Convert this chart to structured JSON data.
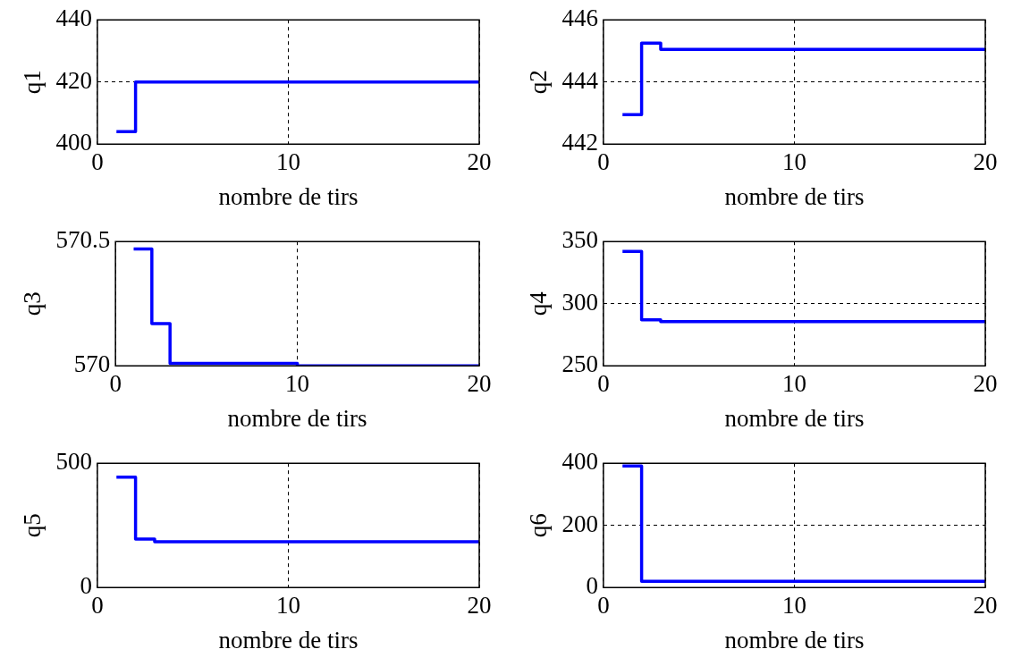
{
  "chart_data": [
    {
      "type": "step",
      "xlabel": "nombre de tirs",
      "ylabel": "q1",
      "x": [
        1,
        2,
        20
      ],
      "values": [
        404,
        420,
        420
      ],
      "color": "#0000ff",
      "xlim": [
        0,
        20
      ],
      "xticks": [
        0,
        10,
        20
      ],
      "ylim": [
        400,
        440
      ],
      "yticks": [
        400,
        420,
        440
      ],
      "grid": true
    },
    {
      "type": "step",
      "xlabel": "nombre de tirs",
      "ylabel": "q2",
      "x": [
        1,
        2,
        3,
        20
      ],
      "values": [
        442.95,
        445.25,
        445.05,
        445.05
      ],
      "color": "#0000ff",
      "xlim": [
        0,
        20
      ],
      "xticks": [
        0,
        10,
        20
      ],
      "ylim": [
        442,
        446
      ],
      "yticks": [
        442,
        444,
        446
      ],
      "grid": true
    },
    {
      "type": "step",
      "xlabel": "nombre de tirs",
      "ylabel": "q3",
      "x": [
        1,
        2,
        3,
        10,
        20
      ],
      "values": [
        570.47,
        570.17,
        570.01,
        570.0,
        570.0
      ],
      "color": "#0000ff",
      "xlim": [
        0,
        20
      ],
      "xticks": [
        0,
        10,
        20
      ],
      "ylim": [
        570,
        570.5
      ],
      "yticks": [
        570,
        570.5
      ],
      "grid": "x"
    },
    {
      "type": "step",
      "xlabel": "nombre de tirs",
      "ylabel": "q4",
      "x": [
        1,
        2,
        3,
        20
      ],
      "values": [
        342,
        287,
        285.5,
        285.5
      ],
      "color": "#0000ff",
      "xlim": [
        0,
        20
      ],
      "xticks": [
        0,
        10,
        20
      ],
      "ylim": [
        250,
        350
      ],
      "yticks": [
        250,
        300,
        350
      ],
      "grid": true
    },
    {
      "type": "step",
      "xlabel": "nombre de tirs",
      "ylabel": "q5",
      "x": [
        1,
        2,
        3,
        20
      ],
      "values": [
        444,
        195,
        184,
        184
      ],
      "color": "#0000ff",
      "xlim": [
        0,
        20
      ],
      "xticks": [
        0,
        10,
        20
      ],
      "ylim": [
        0,
        500
      ],
      "yticks": [
        0,
        500
      ],
      "grid": "x"
    },
    {
      "type": "step",
      "xlabel": "nombre de tirs",
      "ylabel": "q6",
      "x": [
        1,
        2,
        20
      ],
      "values": [
        391,
        20,
        20
      ],
      "color": "#0000ff",
      "xlim": [
        0,
        20
      ],
      "xticks": [
        0,
        10,
        20
      ],
      "ylim": [
        0,
        400
      ],
      "yticks": [
        0,
        200,
        400
      ],
      "grid": true
    }
  ]
}
